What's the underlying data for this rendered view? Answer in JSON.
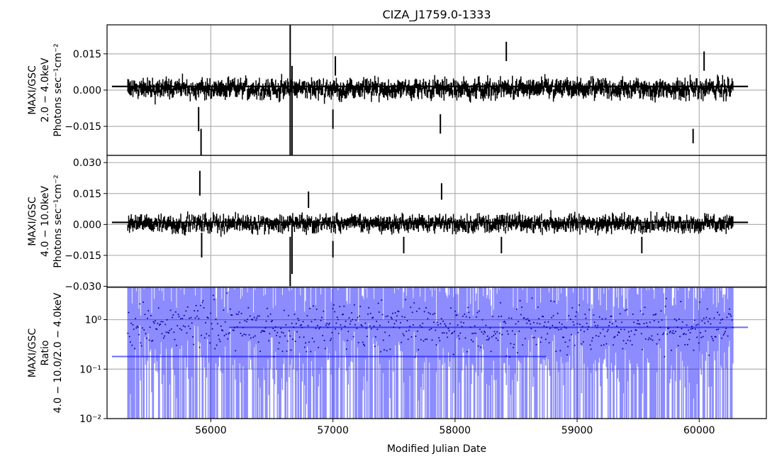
{
  "chart_data": {
    "title": "CIZA_J1759.0-1333",
    "xlabel": "Modified Julian Date",
    "xlim": [
      55150,
      60550
    ],
    "x_ticks": [
      56000,
      57000,
      58000,
      59000,
      60000
    ],
    "x_tick_labels": [
      "56000",
      "57000",
      "58000",
      "59000",
      "60000"
    ],
    "grid": true,
    "panels": [
      {
        "type": "errorbar",
        "ylabel_lines": [
          "MAXI/GSC",
          "2.0 − 4.0keV",
          "Photons sec⁻¹cm⁻²"
        ],
        "ylim": [
          -0.027,
          0.027
        ],
        "y_ticks": [
          -0.015,
          0.0,
          0.015
        ],
        "y_tick_labels": [
          "−0.015",
          "0.000",
          "0.015"
        ],
        "color": "#000000",
        "mean_line": {
          "x": [
            55190,
            60400
          ],
          "y": 0.0015
        },
        "x_range": [
          55320,
          60280
        ],
        "noise_sigma": 0.004,
        "outliers": [
          {
            "x": 55900,
            "y": -0.012,
            "err": 0.005
          },
          {
            "x": 55920,
            "y": -0.022,
            "err": 0.006
          },
          {
            "x": 56650,
            "y": 0.0,
            "err": 0.027
          },
          {
            "x": 56665,
            "y": -0.01,
            "err": 0.02
          },
          {
            "x": 57000,
            "y": -0.012,
            "err": 0.004
          },
          {
            "x": 57020,
            "y": 0.01,
            "err": 0.004
          },
          {
            "x": 57880,
            "y": -0.014,
            "err": 0.004
          },
          {
            "x": 58420,
            "y": 0.016,
            "err": 0.004
          },
          {
            "x": 59950,
            "y": -0.019,
            "err": 0.003
          },
          {
            "x": 60040,
            "y": 0.012,
            "err": 0.004
          }
        ]
      },
      {
        "type": "errorbar",
        "ylabel_lines": [
          "MAXI/GSC",
          "4.0 − 10.0keV",
          "Photons sec⁻¹cm⁻²"
        ],
        "ylim": [
          -0.0305,
          0.0335
        ],
        "y_ticks": [
          -0.03,
          -0.015,
          0.0,
          0.015,
          0.03
        ],
        "y_tick_labels": [
          "−0.030",
          "−0.015",
          "0.000",
          "0.015",
          "0.030"
        ],
        "color": "#000000",
        "mean_line": {
          "x": [
            55190,
            60400
          ],
          "y": 0.001
        },
        "x_range": [
          55320,
          60280
        ],
        "noise_sigma": 0.004,
        "outliers": [
          {
            "x": 55910,
            "y": 0.02,
            "err": 0.006
          },
          {
            "x": 55925,
            "y": -0.01,
            "err": 0.006
          },
          {
            "x": 56650,
            "y": -0.018,
            "err": 0.012
          },
          {
            "x": 56665,
            "y": -0.012,
            "err": 0.012
          },
          {
            "x": 56800,
            "y": 0.012,
            "err": 0.004
          },
          {
            "x": 57000,
            "y": -0.012,
            "err": 0.004
          },
          {
            "x": 57580,
            "y": -0.01,
            "err": 0.004
          },
          {
            "x": 57890,
            "y": 0.016,
            "err": 0.004
          },
          {
            "x": 58380,
            "y": -0.01,
            "err": 0.004
          },
          {
            "x": 59530,
            "y": -0.01,
            "err": 0.004
          }
        ]
      },
      {
        "type": "errorbar-log",
        "ylabel_lines": [
          "MAXI/GSC",
          "Ratio",
          "4.0 − 10.0/2.0 − 4.0keV"
        ],
        "ylim": [
          0.01,
          4.5
        ],
        "y_ticks": [
          0.01,
          0.1,
          1.0
        ],
        "y_tick_labels": [
          "10⁻²",
          "10⁻¹",
          "10⁰"
        ],
        "color": "#0000ff",
        "mean_segments": [
          {
            "x": [
              55190,
              58750
            ],
            "y": 0.18
          },
          {
            "x": [
              56150,
              60400
            ],
            "y": 0.7
          }
        ],
        "x_range": [
          55320,
          60280
        ]
      }
    ]
  }
}
